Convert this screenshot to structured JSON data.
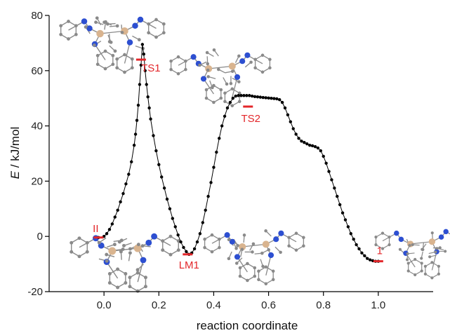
{
  "chart_data": {
    "type": "scatter",
    "xlabel": "reaction coordinate",
    "ylabel_italic": "E",
    "ylabel_rest": " / kJ/mol",
    "xlim": [
      -0.2,
      1.2
    ],
    "ylim": [
      -20,
      80
    ],
    "xticks": [
      {
        "value": 0.0,
        "label": "0.0"
      },
      {
        "value": 0.2,
        "label": "0.2"
      },
      {
        "value": 0.4,
        "label": "0.4"
      },
      {
        "value": 0.6,
        "label": "0.6"
      },
      {
        "value": 0.8,
        "label": "0.8"
      },
      {
        "value": 1.0,
        "label": "1.0"
      }
    ],
    "yticks": [
      {
        "value": -20,
        "label": "-20"
      },
      {
        "value": 0,
        "label": "0"
      },
      {
        "value": 20,
        "label": "20"
      },
      {
        "value": 40,
        "label": "40"
      },
      {
        "value": 60,
        "label": "60"
      },
      {
        "value": 80,
        "label": "80"
      }
    ],
    "curve_points": [
      [
        -0.02,
        -0.4
      ],
      [
        0.0,
        0.0
      ],
      [
        0.01,
        1.0
      ],
      [
        0.02,
        2.5
      ],
      [
        0.03,
        4.5
      ],
      [
        0.04,
        7.0
      ],
      [
        0.05,
        9.5
      ],
      [
        0.06,
        12.5
      ],
      [
        0.07,
        15.5
      ],
      [
        0.08,
        19.0
      ],
      [
        0.09,
        22.5
      ],
      [
        0.1,
        27.0
      ],
      [
        0.11,
        33.0
      ],
      [
        0.115,
        37.0
      ],
      [
        0.12,
        42.0
      ],
      [
        0.125,
        47.5
      ],
      [
        0.13,
        55.0
      ],
      [
        0.135,
        62.0
      ],
      [
        0.14,
        69.5
      ],
      [
        0.145,
        66.0
      ],
      [
        0.15,
        60.0
      ],
      [
        0.155,
        55.0
      ],
      [
        0.16,
        50.5
      ],
      [
        0.165,
        46.5
      ],
      [
        0.17,
        42.5
      ],
      [
        0.18,
        36.5
      ],
      [
        0.19,
        31.0
      ],
      [
        0.2,
        26.0
      ],
      [
        0.21,
        21.5
      ],
      [
        0.22,
        17.5
      ],
      [
        0.23,
        13.5
      ],
      [
        0.24,
        10.0
      ],
      [
        0.25,
        6.5
      ],
      [
        0.26,
        3.5
      ],
      [
        0.27,
        0.5
      ],
      [
        0.28,
        -2.0
      ],
      [
        0.29,
        -4.0
      ],
      [
        0.3,
        -5.5
      ],
      [
        0.31,
        -6.5
      ],
      [
        0.32,
        -6.0
      ],
      [
        0.33,
        -4.5
      ],
      [
        0.34,
        -2.0
      ],
      [
        0.35,
        1.0
      ],
      [
        0.36,
        5.0
      ],
      [
        0.37,
        9.5
      ],
      [
        0.38,
        14.5
      ],
      [
        0.39,
        19.5
      ],
      [
        0.4,
        25.0
      ],
      [
        0.41,
        30.5
      ],
      [
        0.42,
        35.5
      ],
      [
        0.43,
        40.0
      ],
      [
        0.44,
        43.5
      ],
      [
        0.45,
        46.5
      ],
      [
        0.46,
        48.5
      ],
      [
        0.47,
        50.0
      ],
      [
        0.48,
        50.8
      ],
      [
        0.49,
        51.0
      ],
      [
        0.5,
        51.0
      ],
      [
        0.51,
        51.0
      ],
      [
        0.52,
        51.0
      ],
      [
        0.53,
        51.0
      ],
      [
        0.54,
        50.8
      ],
      [
        0.55,
        50.6
      ],
      [
        0.56,
        50.5
      ],
      [
        0.57,
        50.4
      ],
      [
        0.58,
        50.3
      ],
      [
        0.59,
        50.2
      ],
      [
        0.6,
        50.1
      ],
      [
        0.61,
        50.0
      ],
      [
        0.62,
        49.9
      ],
      [
        0.63,
        49.8
      ],
      [
        0.64,
        49.5
      ],
      [
        0.65,
        48.5
      ],
      [
        0.66,
        46.5
      ],
      [
        0.67,
        44.0
      ],
      [
        0.68,
        41.5
      ],
      [
        0.69,
        39.0
      ],
      [
        0.7,
        37.0
      ],
      [
        0.71,
        35.5
      ],
      [
        0.72,
        34.5
      ],
      [
        0.73,
        34.0
      ],
      [
        0.74,
        33.5
      ],
      [
        0.75,
        33.0
      ],
      [
        0.76,
        32.8
      ],
      [
        0.77,
        32.5
      ],
      [
        0.78,
        32.0
      ],
      [
        0.79,
        31.0
      ],
      [
        0.8,
        29.0
      ],
      [
        0.81,
        26.5
      ],
      [
        0.82,
        23.5
      ],
      [
        0.83,
        20.5
      ],
      [
        0.84,
        17.5
      ],
      [
        0.85,
        14.5
      ],
      [
        0.86,
        11.5
      ],
      [
        0.87,
        8.5
      ],
      [
        0.88,
        6.0
      ],
      [
        0.89,
        3.5
      ],
      [
        0.9,
        1.0
      ],
      [
        0.91,
        -1.0
      ],
      [
        0.92,
        -3.0
      ],
      [
        0.93,
        -4.5
      ],
      [
        0.94,
        -6.0
      ],
      [
        0.95,
        -7.0
      ],
      [
        0.96,
        -8.0
      ],
      [
        0.97,
        -8.5
      ],
      [
        0.98,
        -8.8
      ],
      [
        0.99,
        -9.0
      ],
      [
        1.0,
        -9.0
      ]
    ],
    "level_markers": [
      {
        "label": "II",
        "x": -0.02,
        "y": -0.4
      },
      {
        "label": "TS1",
        "x": 0.135,
        "y": 64
      },
      {
        "label": "LM1",
        "x": 0.305,
        "y": -6.5
      },
      {
        "label": "TS2",
        "x": 0.525,
        "y": 47
      },
      {
        "label": "1",
        "x": 1.0,
        "y": -9
      }
    ]
  },
  "colors": {
    "curve": "#000000",
    "marker": "#e3262a",
    "axis": "#000000",
    "atom_gray": "#8a8a8a",
    "atom_blue": "#2d4fd1",
    "atom_metal": "#d9b48f"
  }
}
